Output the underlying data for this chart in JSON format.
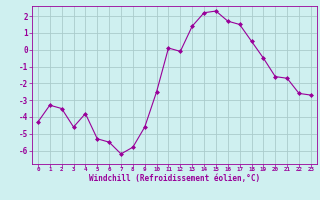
{
  "x": [
    0,
    1,
    2,
    3,
    4,
    5,
    6,
    7,
    8,
    9,
    10,
    11,
    12,
    13,
    14,
    15,
    16,
    17,
    18,
    19,
    20,
    21,
    22,
    23
  ],
  "y": [
    -4.3,
    -3.3,
    -3.5,
    -4.6,
    -3.8,
    -5.3,
    -5.5,
    -6.2,
    -5.8,
    -4.6,
    -2.5,
    0.1,
    -0.1,
    1.4,
    2.2,
    2.3,
    1.7,
    1.5,
    0.5,
    -0.5,
    -1.6,
    -1.7,
    -2.6,
    -2.7
  ],
  "line_color": "#990099",
  "marker": "D",
  "marker_size": 2,
  "bg_color": "#cff0f0",
  "grid_color": "#aacccc",
  "xlabel": "Windchill (Refroidissement éolien,°C)",
  "xlabel_color": "#990099",
  "tick_color": "#990099",
  "spine_color": "#990099",
  "ylim": [
    -6.8,
    2.6
  ],
  "xlim": [
    -0.5,
    23.5
  ],
  "yticks": [
    -6,
    -5,
    -4,
    -3,
    -2,
    -1,
    0,
    1,
    2
  ],
  "xticks": [
    0,
    1,
    2,
    3,
    4,
    5,
    6,
    7,
    8,
    9,
    10,
    11,
    12,
    13,
    14,
    15,
    16,
    17,
    18,
    19,
    20,
    21,
    22,
    23
  ]
}
